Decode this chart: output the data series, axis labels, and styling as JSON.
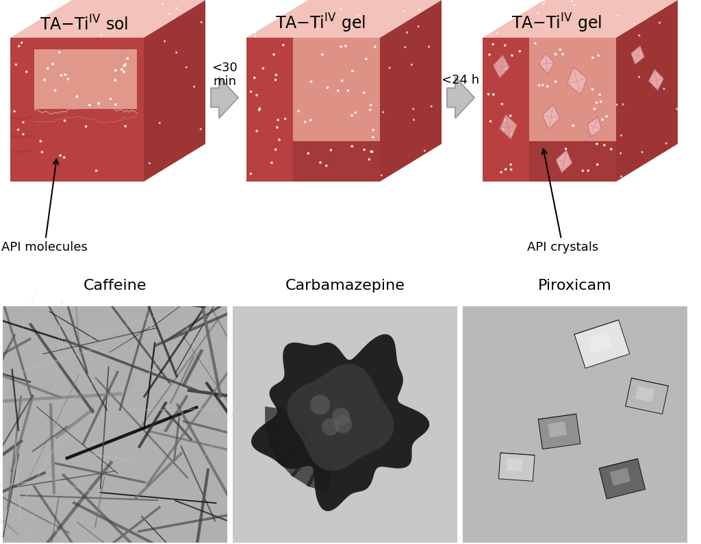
{
  "title_labels": [
    "TA–Ti$^{IV}$ sol",
    "TA–Ti$^{IV}$ gel",
    "TA–Ti$^{IV}$ gel"
  ],
  "arrow_label1": "<30\nmin",
  "arrow_label2": "<24 h",
  "bottom_labels": [
    "Caffeine",
    "Carbamazepine",
    "Piroxicam"
  ],
  "annotation_left": "API molecules",
  "annotation_right": "API crystals",
  "bg_color": "#ffffff",
  "cube_front_dark": "#b84040",
  "cube_front_light": "#d4706a",
  "cube_side_dark": "#9e3535",
  "cube_top_light": "#f0b8b0",
  "cube_inner_light": "#e8a898",
  "cube_bottom_dark": "#a03838",
  "crystal_fill": "#f0b8b8",
  "crystal_edge": "#c07080",
  "dot_color": "#ffffff",
  "arrow_fill": "#c0c0c0",
  "arrow_edge": "#a0a0a0"
}
